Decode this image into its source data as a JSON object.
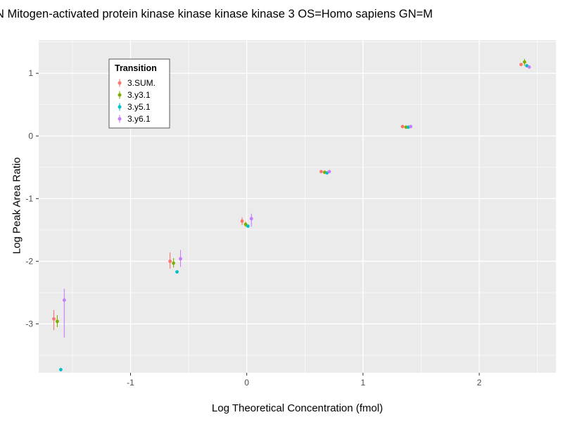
{
  "title": "N Mitogen-activated protein kinase kinase kinase kinase 3 OS=Homo sapiens GN=M",
  "chart_data": {
    "type": "scatter",
    "title": "N Mitogen-activated protein kinase kinase kinase kinase 3 OS=Homo sapiens GN=M",
    "xlabel": "Log Theoretical Concentration (fmol)",
    "ylabel": "Log Peak Area Ratio",
    "xlim": [
      -1.79,
      2.66
    ],
    "ylim": [
      -3.78,
      1.53
    ],
    "xticks": [
      -1,
      0,
      1,
      2
    ],
    "yticks": [
      -3,
      -2,
      -1,
      0,
      1
    ],
    "x_minor_ticks": [
      -1.5,
      -0.5,
      0.5,
      1.5,
      2.5
    ],
    "y_minor_ticks": [
      -3.5,
      -2.5,
      -1.5,
      -0.5,
      0.5,
      1.5
    ],
    "grid": true,
    "panel_bg": "#EBEBEB",
    "grid_color": "#FFFFFF",
    "tick_color": "#333333",
    "legend": {
      "title": "Transition",
      "position": "top-left-inside",
      "entries": [
        "3.SUM.",
        "3.y3.1",
        "3.y5.1",
        "3.y6.1"
      ]
    },
    "series": [
      {
        "name": "3.SUM.",
        "color": "#F8766D",
        "points": [
          {
            "x": -1.66,
            "y": -2.92,
            "lo": -3.1,
            "hi": -2.78
          },
          {
            "x": -0.66,
            "y": -2.0,
            "lo": -2.12,
            "hi": -1.86
          },
          {
            "x": -0.04,
            "y": -1.36,
            "lo": -1.42,
            "hi": -1.3
          },
          {
            "x": 0.64,
            "y": -0.57
          },
          {
            "x": 1.34,
            "y": 0.15
          },
          {
            "x": 2.36,
            "y": 1.14
          }
        ]
      },
      {
        "name": "3.y3.1",
        "color": "#7CAE00",
        "points": [
          {
            "x": -1.63,
            "y": -2.96,
            "lo": -3.05,
            "hi": -2.86
          },
          {
            "x": -0.63,
            "y": -2.03,
            "lo": -2.1,
            "hi": -1.95
          },
          {
            "x": -0.01,
            "y": -1.41,
            "lo": -1.45,
            "hi": -1.37
          },
          {
            "x": 0.67,
            "y": -0.58
          },
          {
            "x": 1.37,
            "y": 0.14
          },
          {
            "x": 2.39,
            "y": 1.18,
            "lo": 1.12,
            "hi": 1.23
          }
        ]
      },
      {
        "name": "3.y5.1",
        "color": "#00BFC4",
        "points": [
          {
            "x": -1.6,
            "y": -3.73
          },
          {
            "x": -0.6,
            "y": -2.17
          },
          {
            "x": 0.01,
            "y": -1.44
          },
          {
            "x": 0.69,
            "y": -0.59
          },
          {
            "x": 1.39,
            "y": 0.14
          },
          {
            "x": 2.41,
            "y": 1.12
          }
        ]
      },
      {
        "name": "3.y6.1",
        "color": "#C77CFF",
        "points": [
          {
            "x": -1.57,
            "y": -2.62,
            "lo": -3.22,
            "hi": -2.44
          },
          {
            "x": -0.57,
            "y": -1.96,
            "lo": -2.09,
            "hi": -1.82
          },
          {
            "x": 0.04,
            "y": -1.32,
            "lo": -1.45,
            "hi": -1.24
          },
          {
            "x": 0.71,
            "y": -0.57
          },
          {
            "x": 1.41,
            "y": 0.15
          },
          {
            "x": 2.43,
            "y": 1.1
          }
        ]
      }
    ]
  }
}
